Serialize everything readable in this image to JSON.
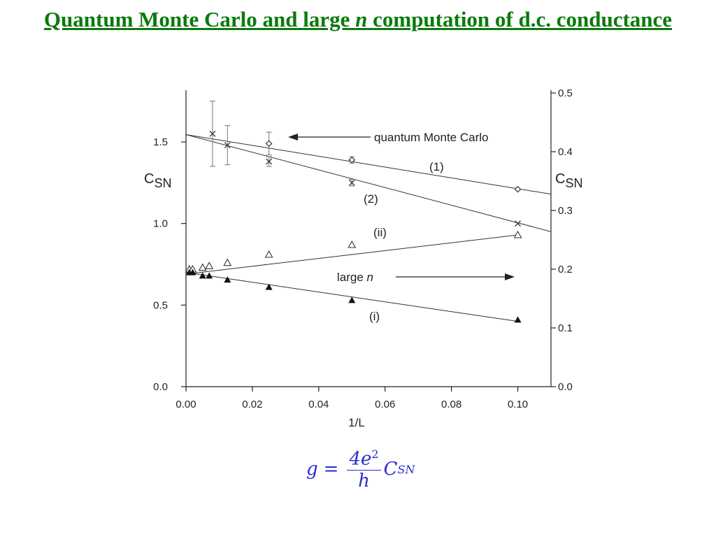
{
  "chart_data": {
    "type": "scatter",
    "title_parts": [
      "Quantum Monte Carlo and large",
      "n",
      "computation of d.c. conductance"
    ],
    "xlabel": "1/L",
    "ylabel": {
      "symbol": "C",
      "subscript": "SN"
    },
    "y2label": {
      "symbol": "C",
      "subscript": "SN"
    },
    "xlim": [
      0,
      0.11
    ],
    "ylim": [
      0,
      1.8
    ],
    "y2lim": [
      0,
      0.5
    ],
    "xticks": [
      {
        "value": 0,
        "label": "0.00"
      },
      {
        "value": 0.02,
        "label": "0.02"
      },
      {
        "value": 0.04,
        "label": "0.04"
      },
      {
        "value": 0.06,
        "label": "0.06"
      },
      {
        "value": 0.08,
        "label": "0.08"
      },
      {
        "value": 0.1,
        "label": "0.10"
      }
    ],
    "yticks": [
      {
        "value": 0,
        "label": "0.0"
      },
      {
        "value": 0.5,
        "label": "0.5"
      },
      {
        "value": 1,
        "label": "1.0"
      },
      {
        "value": 1.5,
        "label": "1.5"
      }
    ],
    "y2ticks": [
      {
        "value": 0,
        "label": "0.0"
      },
      {
        "value": 0.1,
        "label": "0.1"
      },
      {
        "value": 0.2,
        "label": "0.2"
      },
      {
        "value": 0.3,
        "label": "0.3"
      },
      {
        "value": 0.4,
        "label": "0.4"
      },
      {
        "value": 0.5,
        "label": "0.5"
      }
    ],
    "series": [
      {
        "name": "(1)",
        "marker": "diamond",
        "color": "#333333",
        "x": [
          0.025,
          0.05,
          0.1
        ],
        "values": [
          1.49,
          1.39,
          1.21
        ],
        "errors": [
          0.07,
          0.02,
          null
        ],
        "fit": {
          "x": [
            0,
            0.11
          ],
          "values": [
            1.545,
            1.18
          ]
        }
      },
      {
        "name": "(2)",
        "marker": "cross",
        "color": "#333333",
        "x": [
          0.008,
          0.0125,
          0.025,
          0.05,
          0.1
        ],
        "values": [
          1.55,
          1.48,
          1.38,
          1.25,
          1.0
        ],
        "errors": [
          0.2,
          0.12,
          0.03,
          0.02,
          null
        ],
        "fit": {
          "x": [
            0,
            0.11
          ],
          "values": [
            1.545,
            0.95
          ]
        }
      },
      {
        "name": "(ii)",
        "marker": "triangle-open",
        "color": "#333333",
        "x": [
          0.001,
          0.002,
          0.005,
          0.007,
          0.0125,
          0.025,
          0.05,
          0.1
        ],
        "values": [
          0.72,
          0.72,
          0.73,
          0.74,
          0.76,
          0.81,
          0.87,
          0.93
        ],
        "fit": {
          "x": [
            0,
            0.1
          ],
          "values": [
            0.69,
            0.93
          ]
        }
      },
      {
        "name": "(i)",
        "marker": "triangle-filled",
        "color": "#111111",
        "x": [
          0.001,
          0.002,
          0.005,
          0.007,
          0.0125,
          0.025,
          0.05,
          0.1
        ],
        "values": [
          0.7,
          0.7,
          0.68,
          0.68,
          0.655,
          0.61,
          0.53,
          0.41
        ],
        "fit": {
          "x": [
            0,
            0.1
          ],
          "values": [
            0.7,
            0.4
          ]
        }
      }
    ],
    "annotations": [
      {
        "parts": [
          "quantum Monte Carlo"
        ]
      },
      {
        "parts": [
          "large",
          "n"
        ]
      }
    ],
    "formula": {
      "lhs": "g",
      "eq": "=",
      "numerator": "4e",
      "exponent": "2",
      "denominator": "h",
      "symbol": "C",
      "subscript": "SN"
    }
  }
}
